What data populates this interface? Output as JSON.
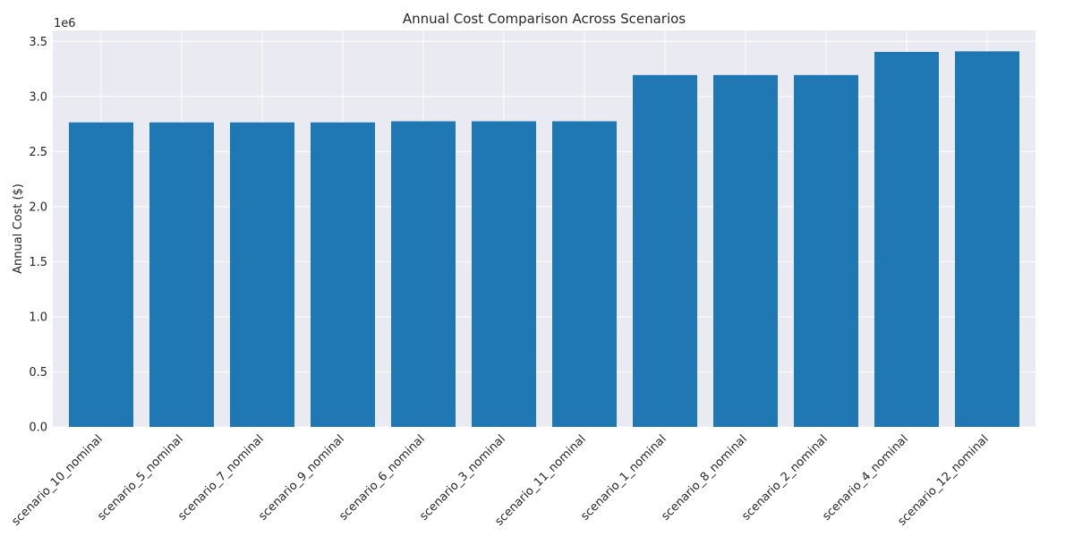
{
  "chart_data": {
    "type": "bar",
    "title": "Annual Cost Comparison Across Scenarios",
    "xlabel": "",
    "ylabel": "Annual Cost ($)",
    "y_offset_label": "1e6",
    "y_scale": 1000000,
    "ylim": [
      0,
      3.6
    ],
    "yticks": [
      0,
      0.5,
      1.0,
      1.5,
      2.0,
      2.5,
      3.0,
      3.5
    ],
    "ytick_labels": [
      "0.0",
      "0.5",
      "1.0",
      "1.5",
      "2.0",
      "2.5",
      "3.0",
      "3.5"
    ],
    "grid": true,
    "categories": [
      "scenario_10_nominal",
      "scenario_5_nominal",
      "scenario_7_nominal",
      "scenario_9_nominal",
      "scenario_6_nominal",
      "scenario_3_nominal",
      "scenario_11_nominal",
      "scenario_1_nominal",
      "scenario_8_nominal",
      "scenario_2_nominal",
      "scenario_4_nominal",
      "scenario_12_nominal"
    ],
    "values": [
      2.765,
      2.765,
      2.765,
      2.765,
      2.775,
      2.775,
      2.775,
      3.195,
      3.195,
      3.195,
      3.405,
      3.41
    ],
    "colors": {
      "bar": "#1f77b4",
      "plot_background": "#eaeaf2",
      "grid": "#ffffff",
      "text": "#262626"
    }
  }
}
